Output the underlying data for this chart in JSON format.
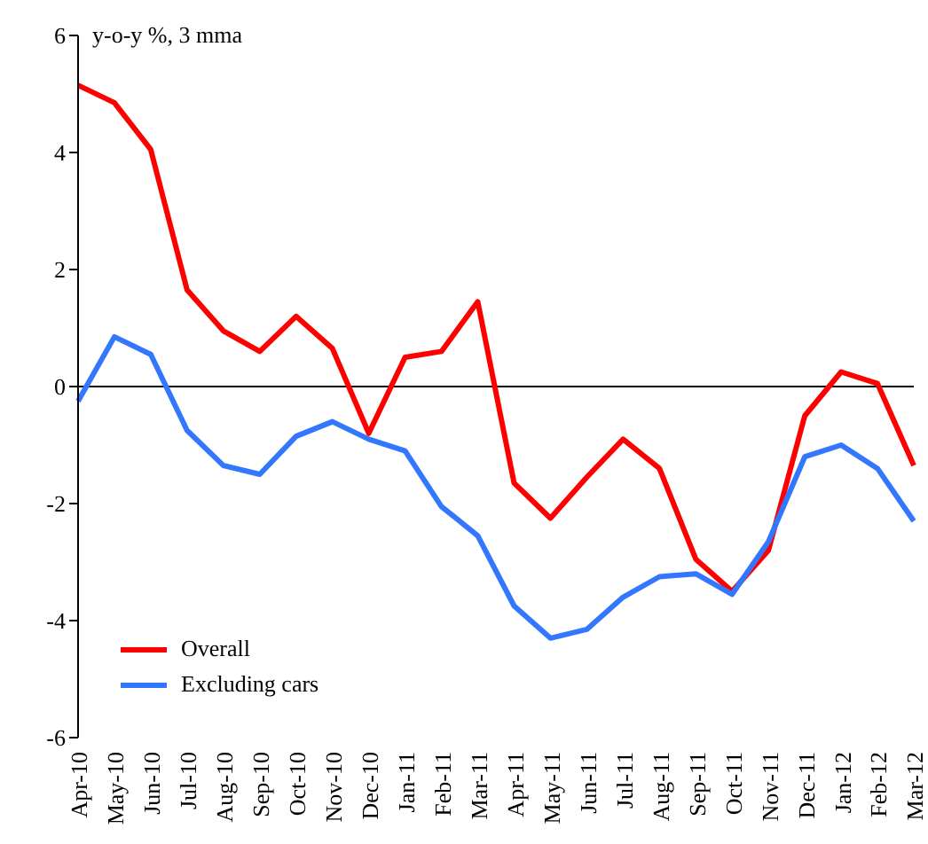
{
  "chart_data": {
    "type": "line",
    "ylabel": "y-o-y %, 3 mma",
    "categories": [
      "Apr-10",
      "May-10",
      "Jun-10",
      "Jul-10",
      "Aug-10",
      "Sep-10",
      "Oct-10",
      "Nov-10",
      "Dec-10",
      "Jan-11",
      "Feb-11",
      "Mar-11",
      "Apr-11",
      "May-11",
      "Jun-11",
      "Jul-11",
      "Aug-11",
      "Sep-11",
      "Oct-11",
      "Nov-11",
      "Dec-11",
      "Jan-12",
      "Feb-12",
      "Mar-12"
    ],
    "series": [
      {
        "name": "Overall",
        "color": "#ff0000",
        "values": [
          5.15,
          4.85,
          4.05,
          1.65,
          0.95,
          0.6,
          1.2,
          0.65,
          -0.8,
          0.5,
          0.6,
          1.45,
          -1.65,
          -2.25,
          -1.55,
          -0.9,
          -1.4,
          -2.95,
          -3.5,
          -2.8,
          -0.5,
          0.25,
          0.05,
          -1.35
        ]
      },
      {
        "name": "Excluding cars",
        "color": "#3377ff",
        "values": [
          -0.25,
          0.85,
          0.55,
          -0.75,
          -1.35,
          -1.5,
          -0.85,
          -0.6,
          -0.9,
          -1.1,
          -2.05,
          -2.55,
          -3.75,
          -4.3,
          -4.15,
          -3.6,
          -3.25,
          -3.2,
          -3.55,
          -2.65,
          -1.2,
          -1.0,
          -1.4,
          -2.3
        ]
      }
    ],
    "ylim": [
      -6,
      6
    ],
    "yticks": [
      -6,
      -4,
      -2,
      0,
      2,
      4,
      6
    ],
    "ref_lines": [
      {
        "axis": "y",
        "value": 0,
        "color": "#000000"
      }
    ],
    "grid": false,
    "legend": "bottom left",
    "marker": "none",
    "line_style": "solid"
  }
}
